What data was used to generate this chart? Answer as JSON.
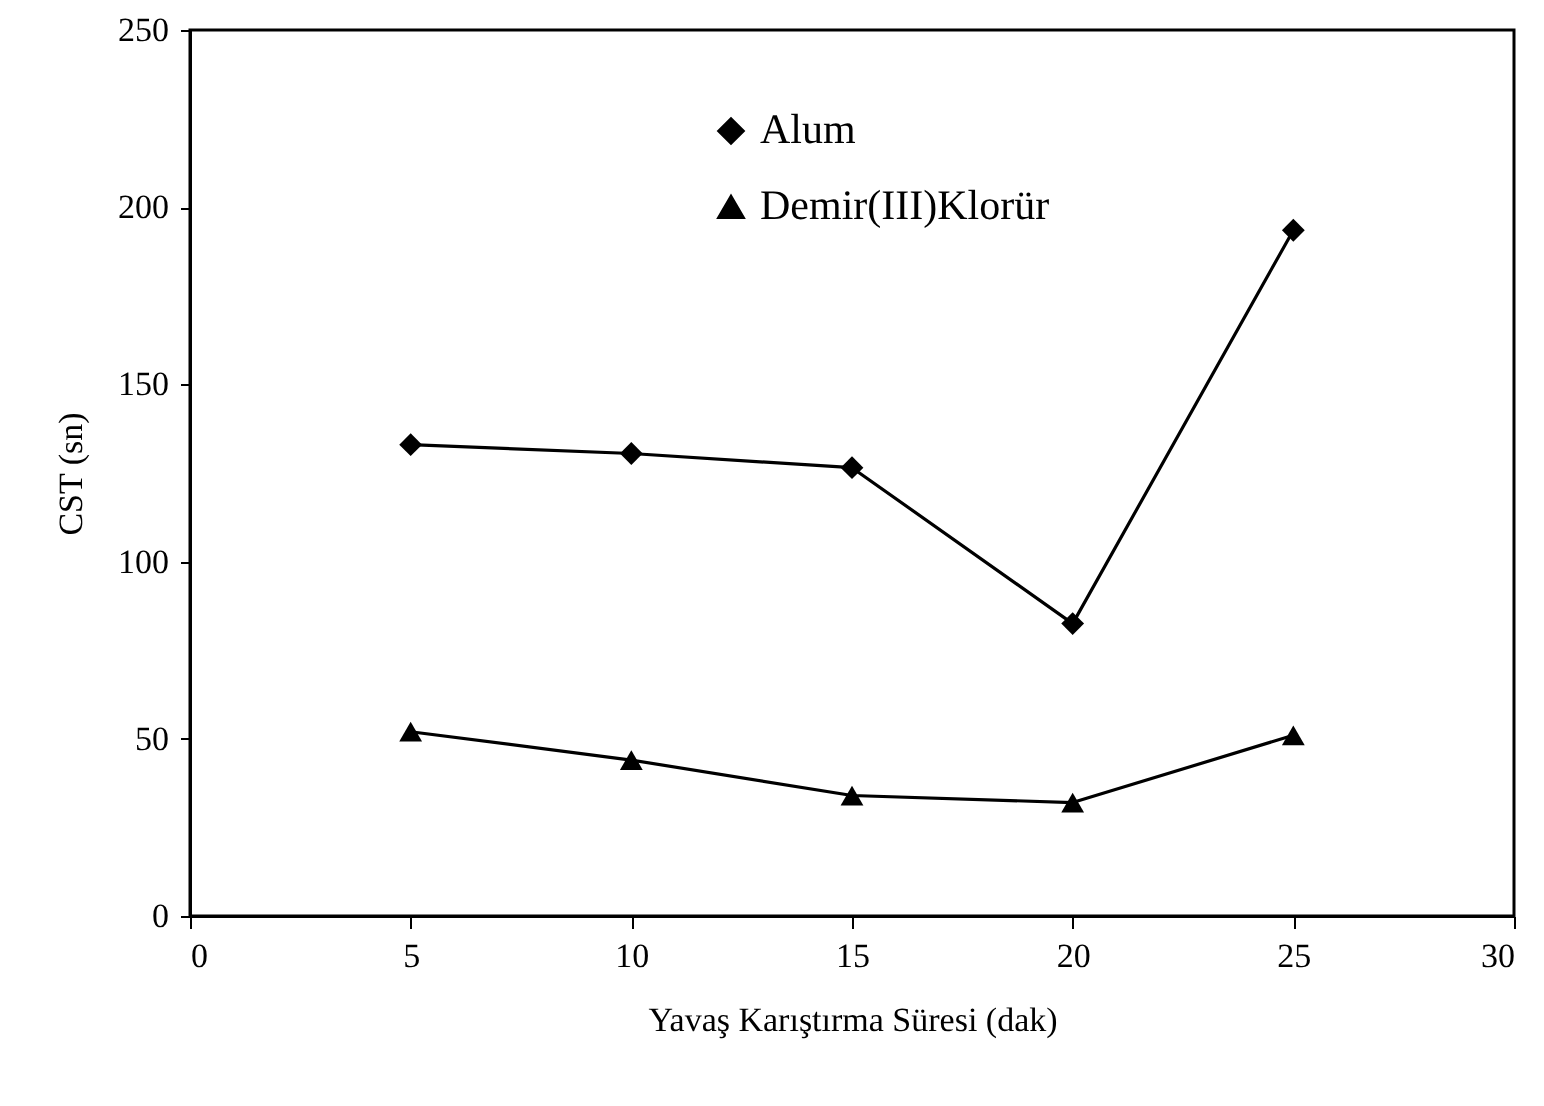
{
  "chart_data": {
    "type": "line",
    "xlabel": "Yavaş Karıştırma Süresi (dak)",
    "ylabel": "CST (sn)",
    "x": [
      5,
      10,
      15,
      20,
      25
    ],
    "series": [
      {
        "name": "Alum",
        "color": "#000000",
        "marker": "diamond",
        "values": [
          133,
          130.5,
          126.5,
          82.5,
          193.5
        ]
      },
      {
        "name": "Demir(III)Klorür",
        "color": "#000000",
        "marker": "triangle",
        "values": [
          52,
          44,
          34,
          32,
          51
        ]
      }
    ],
    "xlim": [
      0,
      30
    ],
    "xticks": [
      0,
      5,
      10,
      15,
      20,
      25,
      30
    ],
    "ylim": [
      0,
      250
    ],
    "yticks": [
      0,
      50,
      100,
      150,
      200,
      250
    ],
    "grid": false,
    "legend": "top",
    "line_style": "solid"
  }
}
